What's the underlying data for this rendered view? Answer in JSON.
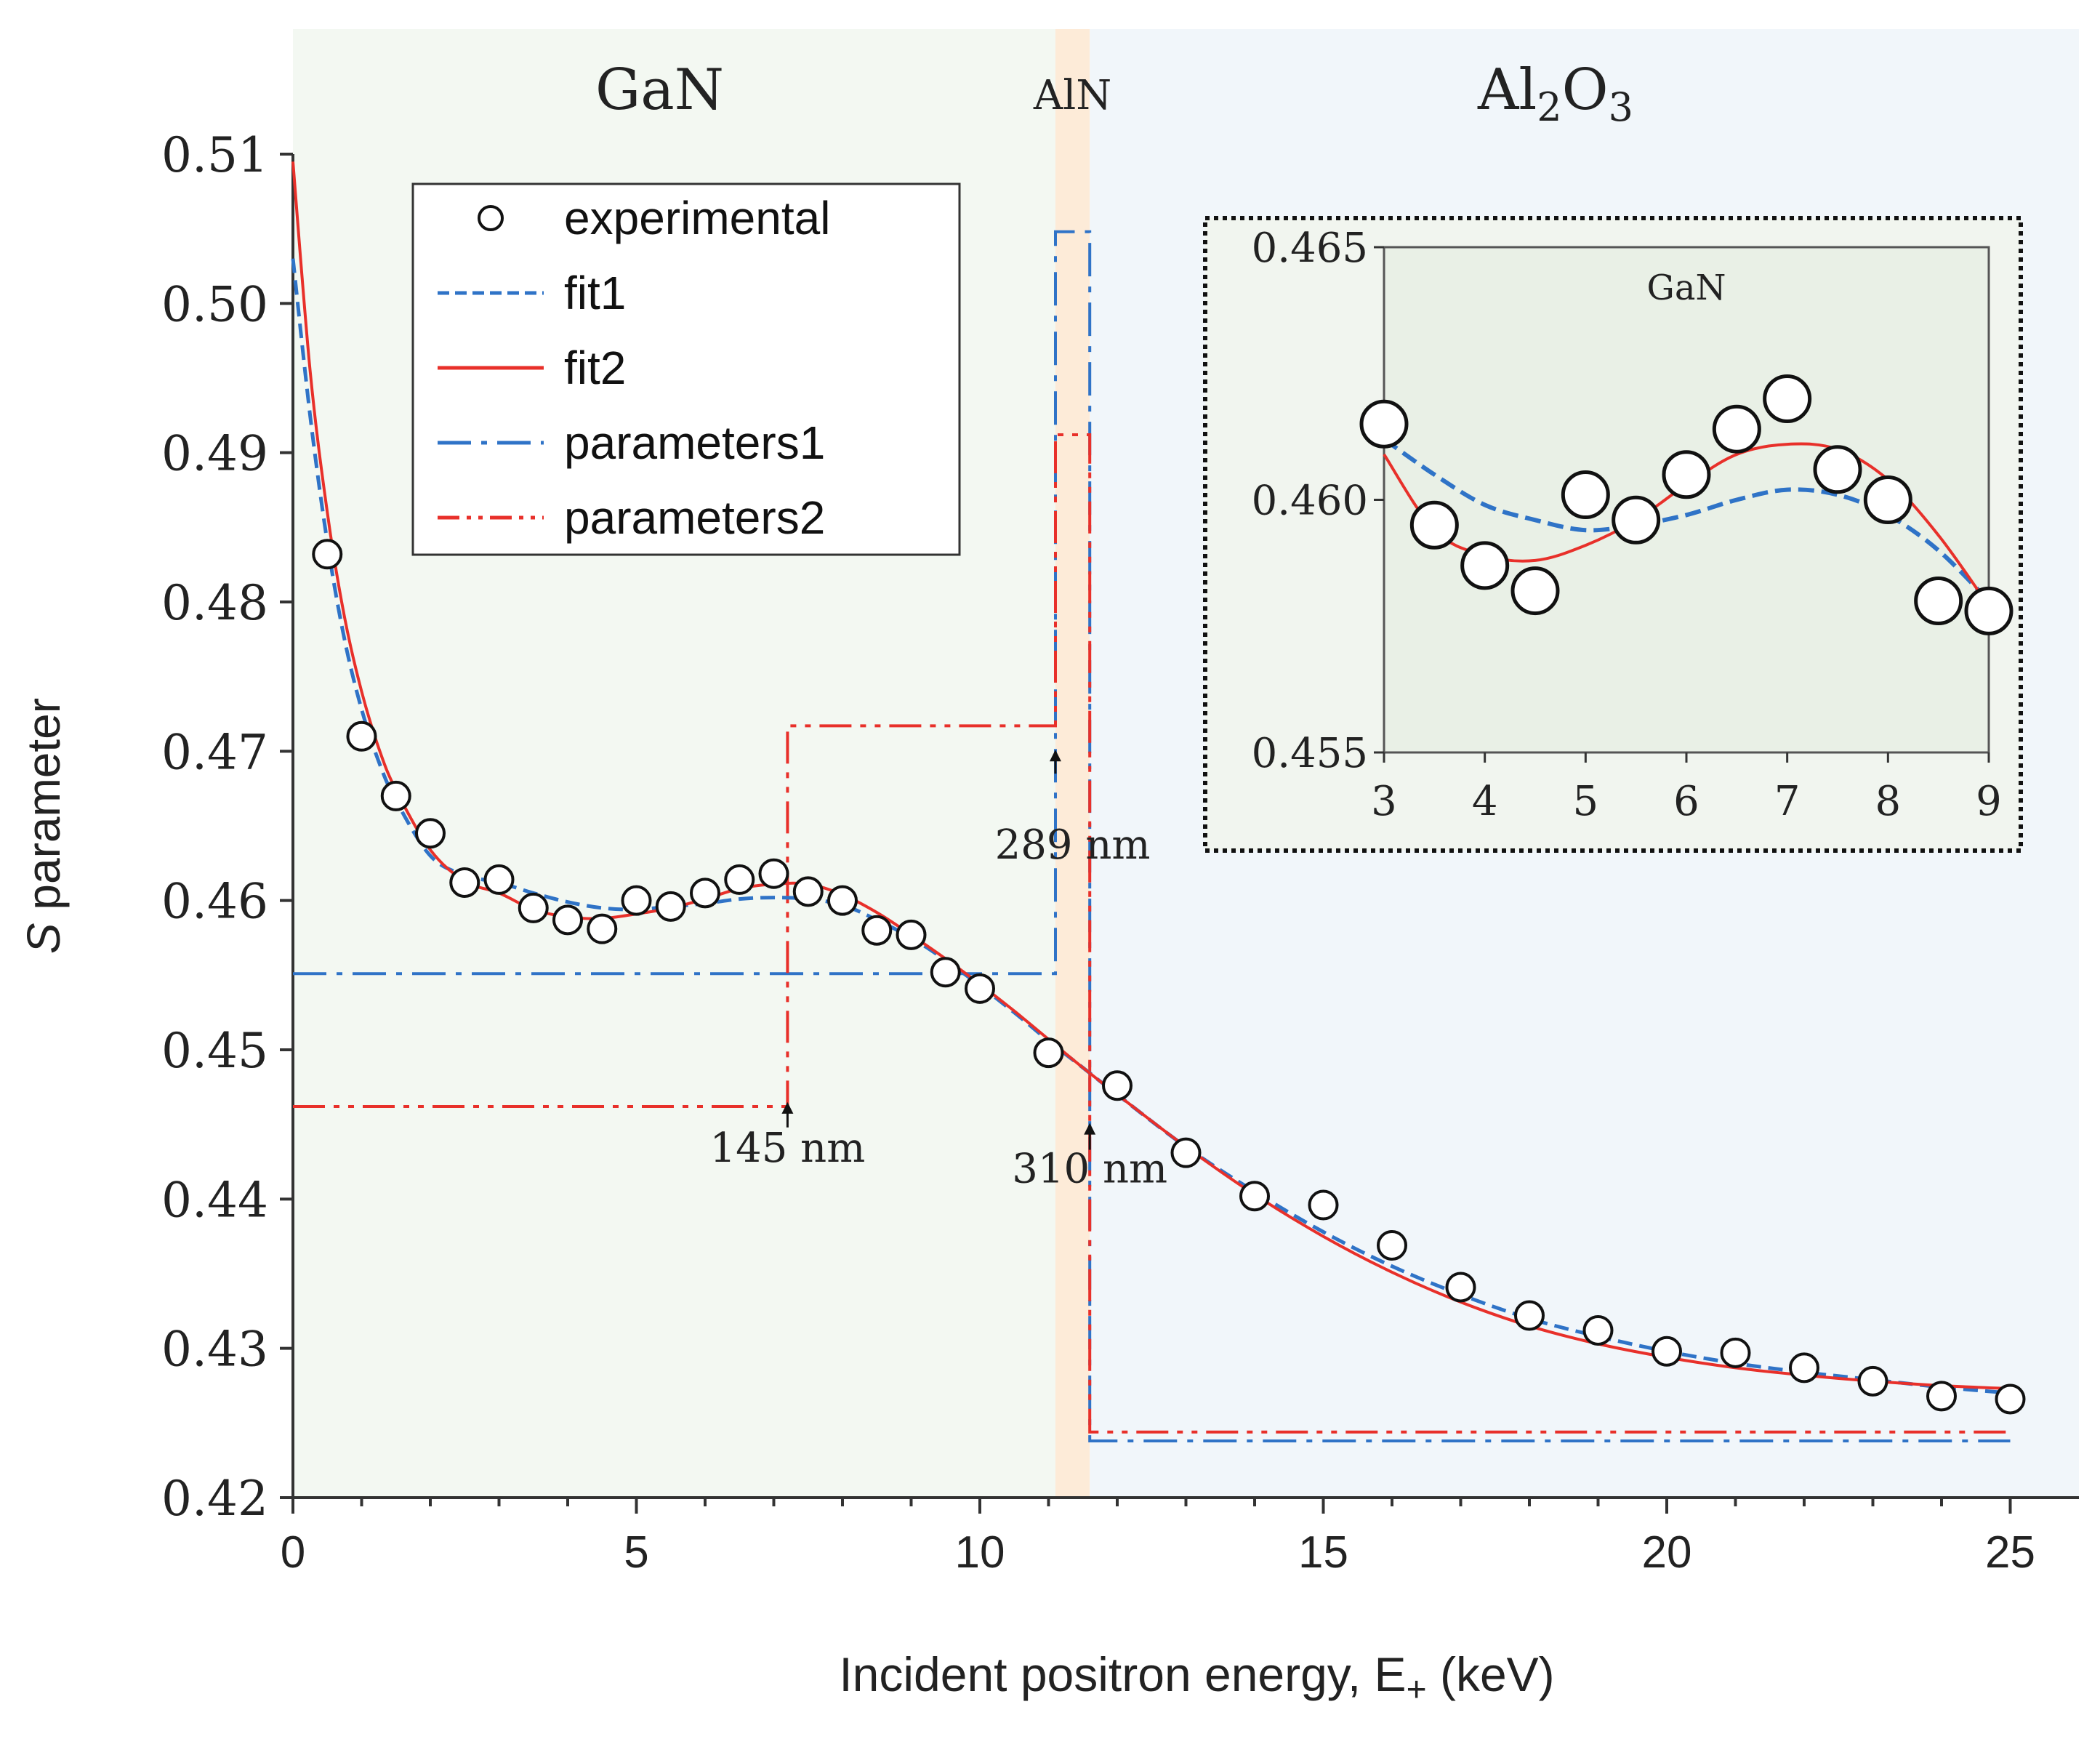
{
  "chart_data": [
    {
      "type": "scatter",
      "region_labels": [
        {
          "text": "GaN",
          "x_from": 0,
          "x_to": 11.1,
          "color": "#f3f8f2"
        },
        {
          "text": "AlN",
          "x_from": 11.1,
          "x_to": 11.6,
          "color": "#fdebd8"
        },
        {
          "text_main": "Al",
          "sub1": "2",
          "mid": "O",
          "sub2": "3",
          "x_from": 11.6,
          "x_to": 26,
          "color": "#f1f6fa"
        }
      ],
      "xlabel_main": "Incident positron energy, E",
      "xlabel_sub": "+",
      "xlabel_unit": " (keV)",
      "ylabel_italic": "S",
      "ylabel_rest": " parameter",
      "xlim": [
        0,
        26
      ],
      "ylim": [
        0.42,
        0.51
      ],
      "x_ticks": [
        "0",
        "5",
        "10",
        "15",
        "20",
        "25"
      ],
      "x_tick_values": [
        0,
        5,
        10,
        15,
        20,
        25
      ],
      "y_ticks": [
        "0.42",
        "0.43",
        "0.44",
        "0.45",
        "0.46",
        "0.47",
        "0.48",
        "0.49",
        "0.50",
        "0.51"
      ],
      "y_tick_values": [
        0.42,
        0.43,
        0.44,
        0.45,
        0.46,
        0.47,
        0.48,
        0.49,
        0.5,
        0.51
      ],
      "legend_position": "top-left",
      "legend": [
        "experimental",
        "fit1",
        "fit2",
        "parameters1",
        "parameters2"
      ],
      "series": [
        {
          "name": "experimental",
          "style": "open-circle",
          "x": [
            0.5,
            1,
            1.5,
            2,
            2.5,
            3,
            3.5,
            4,
            4.5,
            5,
            5.5,
            6,
            6.5,
            7,
            7.5,
            8,
            8.5,
            9,
            9.5,
            10,
            11,
            12,
            13,
            14,
            15,
            16,
            17,
            18,
            19,
            20,
            21,
            22,
            23,
            24,
            25
          ],
          "y": [
            0.4832,
            0.471,
            0.467,
            0.4645,
            0.4612,
            0.4614,
            0.4595,
            0.4587,
            0.4581,
            0.46,
            0.4596,
            0.4605,
            0.4614,
            0.4618,
            0.4606,
            0.46,
            0.458,
            0.4577,
            0.4552,
            0.4541,
            0.4498,
            0.4476,
            0.4431,
            0.4402,
            0.4396,
            0.4369,
            0.4341,
            0.4322,
            0.4312,
            0.4298,
            0.4297,
            0.4287,
            0.4278,
            0.4268,
            0.4266
          ]
        },
        {
          "name": "fit1",
          "style": "dashed",
          "color": "#2f73c7",
          "x": [
            0,
            0.25,
            0.5,
            0.75,
            1,
            1.25,
            1.5,
            2,
            2.5,
            3,
            3.5,
            4,
            4.5,
            5,
            5.5,
            6,
            6.5,
            7,
            7.5,
            8,
            8.5,
            9,
            9.5,
            10,
            10.5,
            11,
            11.5,
            12,
            13,
            14,
            15,
            16,
            17,
            18,
            19,
            20,
            21,
            22,
            23,
            24,
            25
          ],
          "y": [
            0.503,
            0.4925,
            0.484,
            0.4775,
            0.4728,
            0.4693,
            0.4667,
            0.463,
            0.4617,
            0.4612,
            0.4605,
            0.4599,
            0.4595,
            0.4594,
            0.4596,
            0.4598,
            0.4601,
            0.4602,
            0.4601,
            0.4597,
            0.4587,
            0.4575,
            0.456,
            0.4543,
            0.4525,
            0.4506,
            0.4488,
            0.447,
            0.4435,
            0.4405,
            0.4378,
            0.4355,
            0.4336,
            0.432,
            0.4308,
            0.4298,
            0.429,
            0.4284,
            0.4279,
            0.4274,
            0.427
          ]
        },
        {
          "name": "fit2",
          "style": "solid",
          "color": "#e8302a",
          "x": [
            0,
            0.25,
            0.5,
            0.75,
            1,
            1.25,
            1.5,
            2,
            2.5,
            3,
            3.5,
            4,
            4.5,
            5,
            5.5,
            6,
            6.5,
            7,
            7.5,
            8,
            8.5,
            9,
            9.5,
            10,
            10.5,
            11,
            11.5,
            12,
            13,
            14,
            15,
            16,
            17,
            18,
            19,
            20,
            21,
            22,
            23,
            24,
            25
          ],
          "y": [
            0.5095,
            0.4955,
            0.486,
            0.479,
            0.474,
            0.4702,
            0.4674,
            0.4634,
            0.4613,
            0.4605,
            0.4594,
            0.4589,
            0.4588,
            0.4591,
            0.4595,
            0.4601,
            0.4608,
            0.4611,
            0.4611,
            0.4604,
            0.4592,
            0.4577,
            0.4561,
            0.4544,
            0.4526,
            0.4507,
            0.4488,
            0.447,
            0.4435,
            0.4403,
            0.4375,
            0.4351,
            0.4331,
            0.4315,
            0.4303,
            0.4294,
            0.4287,
            0.4282,
            0.4278,
            0.4275,
            0.4273
          ]
        },
        {
          "name": "parameters1",
          "style": "dash-dot",
          "color": "#2f73c7",
          "x": [
            0,
            11.1,
            11.1,
            11.6,
            11.6,
            25
          ],
          "y": [
            0.4551,
            0.4551,
            0.5048,
            0.5048,
            0.4238,
            0.4238
          ]
        },
        {
          "name": "parameters2",
          "style": "dash-dot-dot",
          "color": "#e8302a",
          "x": [
            0,
            7.2,
            7.2,
            11.1,
            11.1,
            11.6,
            11.6,
            25
          ],
          "y": [
            0.4462,
            0.4462,
            0.4717,
            0.4717,
            0.4912,
            0.4912,
            0.4244,
            0.4244
          ]
        }
      ],
      "annotations": [
        {
          "text": "145 nm",
          "arrow_x": 7.2,
          "arrow_y_from": 0.4448,
          "arrow_y_to": 0.4465,
          "text_x": 7.2,
          "text_y": 0.4425
        },
        {
          "text": "289 nm",
          "arrow_x": 11.1,
          "arrow_y_from": 0.4685,
          "arrow_y_to": 0.4701,
          "text_x": 11.35,
          "text_y": 0.4628
        },
        {
          "text": "310 nm",
          "arrow_x": 11.6,
          "arrow_y_from": 0.4433,
          "arrow_y_to": 0.4451,
          "text_x": 11.6,
          "text_y": 0.4411
        }
      ]
    },
    {
      "type": "scatter",
      "inset": true,
      "title": "GaN",
      "xlim": [
        3,
        9
      ],
      "ylim": [
        0.455,
        0.465
      ],
      "x_ticks": [
        "3",
        "4",
        "5",
        "6",
        "7",
        "8",
        "9"
      ],
      "x_tick_values": [
        3,
        4,
        5,
        6,
        7,
        8,
        9
      ],
      "y_ticks": [
        "0.455",
        "0.460",
        "0.465"
      ],
      "y_tick_values": [
        0.455,
        0.46,
        0.465
      ],
      "series": [
        {
          "name": "experimental",
          "style": "open-circle",
          "x": [
            3,
            3.5,
            4,
            4.5,
            5,
            5.5,
            6,
            6.5,
            7,
            7.5,
            8,
            8.5,
            9
          ],
          "y": [
            0.4615,
            0.4595,
            0.4587,
            0.4582,
            0.4601,
            0.4596,
            0.4605,
            0.4614,
            0.462,
            0.4606,
            0.46,
            0.458,
            0.4578
          ]
        },
        {
          "name": "fit1",
          "style": "dashed",
          "color": "#2f73c7",
          "x": [
            3,
            3.5,
            4,
            4.5,
            5,
            5.5,
            6,
            6.5,
            7,
            7.5,
            8,
            8.5,
            9
          ],
          "y": [
            0.4612,
            0.4605,
            0.4599,
            0.4596,
            0.4594,
            0.4595,
            0.4597,
            0.46,
            0.4602,
            0.4601,
            0.4597,
            0.459,
            0.458
          ]
        },
        {
          "name": "fit2",
          "style": "solid",
          "color": "#e8302a",
          "x": [
            3,
            3.5,
            4,
            4.5,
            5,
            5.5,
            6,
            6.5,
            7,
            7.5,
            8,
            8.5,
            9
          ],
          "y": [
            0.4609,
            0.4594,
            0.4589,
            0.4588,
            0.4591,
            0.4596,
            0.4603,
            0.4609,
            0.4611,
            0.461,
            0.4604,
            0.4593,
            0.4579
          ]
        }
      ]
    }
  ]
}
